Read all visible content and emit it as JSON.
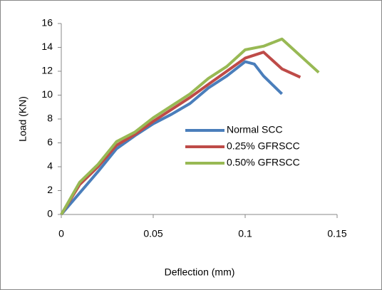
{
  "chart_data": {
    "type": "line",
    "x_label": "Deflection (mm)",
    "y_label": "Load (KN)",
    "xlim": [
      0,
      0.15
    ],
    "xticks": [
      0,
      0.05,
      0.1,
      0.15
    ],
    "ylim": [
      0,
      16
    ],
    "yticks": [
      0,
      2,
      4,
      6,
      8,
      10,
      12,
      14,
      16
    ],
    "grid": false,
    "legend": "right",
    "series": [
      {
        "name": "Normal SCC",
        "color": "#4a7ebb",
        "x": [
          0,
          0.01,
          0.02,
          0.03,
          0.04,
          0.05,
          0.06,
          0.07,
          0.08,
          0.09,
          0.1,
          0.105,
          0.11,
          0.12
        ],
        "values": [
          0,
          1.8,
          3.6,
          5.5,
          6.6,
          7.6,
          8.4,
          9.3,
          10.6,
          11.6,
          12.8,
          12.6,
          11.6,
          10.1
        ]
      },
      {
        "name": "0.25% GFRSCC",
        "color": "#be4b48",
        "x": [
          0,
          0.01,
          0.02,
          0.03,
          0.04,
          0.05,
          0.06,
          0.07,
          0.08,
          0.09,
          0.1,
          0.11,
          0.12,
          0.13
        ],
        "values": [
          0,
          2.5,
          4,
          5.8,
          6.7,
          7.8,
          8.8,
          9.8,
          10.9,
          12,
          13.1,
          13.6,
          12.2,
          11.5
        ]
      },
      {
        "name": "0.50% GFRSCC",
        "color": "#98b954",
        "x": [
          0,
          0.01,
          0.02,
          0.03,
          0.04,
          0.05,
          0.06,
          0.07,
          0.08,
          0.09,
          0.1,
          0.11,
          0.12,
          0.14
        ],
        "values": [
          0,
          2.7,
          4.2,
          6.1,
          6.9,
          8.1,
          9.1,
          10.1,
          11.4,
          12.4,
          13.8,
          14.1,
          14.7,
          11.9
        ]
      }
    ]
  }
}
